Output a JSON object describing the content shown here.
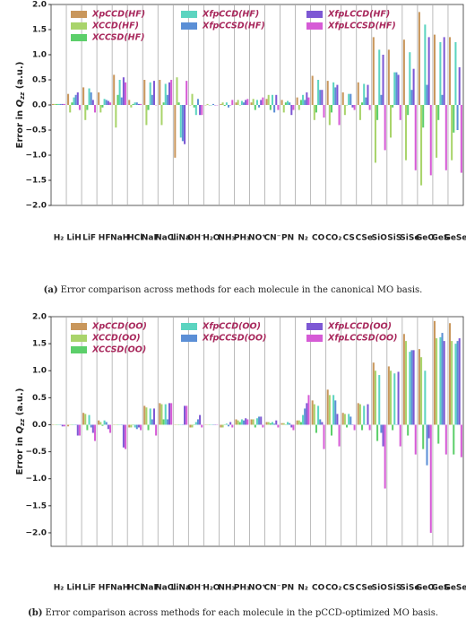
{
  "chart_data": [
    {
      "type": "bar",
      "ylabel_pre": "Error in ",
      "ylabel_q": "Q",
      "ylabel_sub": "zz",
      "ylabel_post": " (a.u.)",
      "caption_label": "(a)",
      "caption": "Error comparison across methods for each molecule in the canonical MO basis.",
      "categories": [
        "H₂",
        "LiH",
        "LiF",
        "HF",
        "NaH",
        "HCl",
        "NaF",
        "NaCl",
        "LiNa",
        "OH⁻",
        "H₂O",
        "NH₃",
        "PH₃",
        "NO⁺",
        "CN⁻",
        "PN",
        "N₂",
        "CO",
        "CO₂",
        "CS",
        "CSe",
        "SiO",
        "SiS",
        "SiSe",
        "GeO",
        "GeS",
        "GeSe"
      ],
      "ylim": [
        -2.0,
        2.0
      ],
      "yticks": [
        {
          "value": 2.0,
          "label": "2.0"
        },
        {
          "value": 1.5,
          "label": "1.5"
        },
        {
          "value": 1.0,
          "label": "1.0"
        },
        {
          "value": 0.5,
          "label": "0.5"
        },
        {
          "value": 0.0,
          "label": "0.0"
        },
        {
          "value": -0.5,
          "label": "−0.5"
        },
        {
          "value": -1.0,
          "label": "−1.0"
        },
        {
          "value": -1.5,
          "label": "−1.5"
        },
        {
          "value": -2.0,
          "label": "−2.0"
        }
      ],
      "series": [
        {
          "name": "XpCCD(HF)",
          "color": "#c9975c",
          "values": [
            0.02,
            0.22,
            0.35,
            0.25,
            0.6,
            0.1,
            0.5,
            0.5,
            -1.05,
            0.0,
            0.0,
            0.02,
            0.05,
            0.05,
            0.12,
            0.1,
            0.15,
            0.58,
            0.48,
            0.25,
            0.45,
            1.35,
            1.1,
            1.3,
            1.85,
            1.4,
            1.35
          ]
        },
        {
          "name": "XCCD(HF)",
          "color": "#a9d46b",
          "values": [
            0.02,
            -0.15,
            -0.3,
            -0.15,
            -0.45,
            -0.05,
            -0.4,
            -0.4,
            0.55,
            0.22,
            0.02,
            0.05,
            0.1,
            0.12,
            0.2,
            -0.15,
            -0.1,
            -0.3,
            -0.4,
            -0.2,
            -0.3,
            -1.15,
            -0.65,
            -1.1,
            -1.6,
            -1.05,
            -1.1
          ]
        },
        {
          "name": "XCCSD(HF)",
          "color": "#5ccf6a",
          "values": [
            0.02,
            0.05,
            -0.1,
            -0.05,
            0.2,
            0.02,
            -0.1,
            0.05,
            0.05,
            -0.05,
            0.0,
            -0.02,
            0.0,
            -0.1,
            -0.1,
            0.05,
            0.1,
            -0.15,
            -0.15,
            0.0,
            0.05,
            -0.3,
            -0.05,
            -0.2,
            -0.45,
            -0.3,
            -0.55
          ]
        },
        {
          "name": "XfpCCD(HF)",
          "color": "#5cd4c0",
          "values": [
            0.02,
            0.15,
            0.33,
            0.12,
            0.5,
            0.05,
            0.45,
            0.42,
            -0.65,
            -0.2,
            0.0,
            0.05,
            0.08,
            0.1,
            0.2,
            0.08,
            0.2,
            0.5,
            0.45,
            0.22,
            0.42,
            1.1,
            0.65,
            1.05,
            1.6,
            1.25,
            1.25
          ]
        },
        {
          "name": "XfpCCSD(HF)",
          "color": "#5b8fd6",
          "values": [
            0.02,
            0.2,
            0.25,
            0.1,
            0.15,
            0.05,
            0.2,
            0.2,
            -0.72,
            0.12,
            0.02,
            -0.05,
            0.05,
            -0.05,
            -0.15,
            0.05,
            0.1,
            0.3,
            0.35,
            0.22,
            0.15,
            0.2,
            0.65,
            0.3,
            0.4,
            0.2,
            -0.5
          ]
        },
        {
          "name": "XfpLCCD(HF)",
          "color": "#7d58d4",
          "values": [
            0.02,
            0.25,
            0.1,
            0.08,
            0.55,
            0.02,
            0.48,
            0.45,
            -0.78,
            -0.2,
            0.0,
            0.0,
            0.1,
            0.1,
            0.2,
            -0.2,
            0.25,
            0.3,
            0.4,
            -0.05,
            0.4,
            1.0,
            0.6,
            0.72,
            1.35,
            1.35,
            0.75
          ]
        },
        {
          "name": "XfpLCCSD(HF)",
          "color": "#d65bd6",
          "values": [
            0.02,
            -0.1,
            -0.15,
            0.05,
            0.45,
            0.02,
            0.0,
            0.5,
            0.48,
            -0.2,
            0.0,
            0.1,
            0.12,
            0.15,
            -0.1,
            -0.1,
            0.15,
            -0.25,
            -0.4,
            -0.1,
            -0.1,
            -0.9,
            -0.3,
            -1.3,
            -1.4,
            -1.3,
            -1.35
          ]
        }
      ]
    },
    {
      "type": "bar",
      "ylabel_pre": "Error in ",
      "ylabel_q": "Q",
      "ylabel_sub": "zz",
      "ylabel_post": " (a.u.)",
      "caption_label": "(b)",
      "caption": "Error comparison across methods for each molecule in the pCCD-optimized MO basis.",
      "categories": [
        "H₂",
        "LiH",
        "LiF",
        "HF",
        "NaH",
        "HCl",
        "NaF",
        "NaCl",
        "LiNa",
        "OH⁻",
        "H₂O",
        "NH₃",
        "PH₃",
        "NO⁺",
        "CN⁻",
        "PN",
        "N₂",
        "CO",
        "CO₂",
        "CS",
        "CSe",
        "SiO",
        "SiS",
        "SiSe",
        "GeO",
        "GeS",
        "GeSe"
      ],
      "ylim": [
        -2.25,
        2.0
      ],
      "yticks": [
        {
          "value": 2.0,
          "label": "2.0"
        },
        {
          "value": 1.5,
          "label": "1.5"
        },
        {
          "value": 1.0,
          "label": "1.0"
        },
        {
          "value": 0.5,
          "label": "0.5"
        },
        {
          "value": 0.0,
          "label": "0.0"
        },
        {
          "value": -0.5,
          "label": "−0.5"
        },
        {
          "value": -1.0,
          "label": "−1.0"
        },
        {
          "value": -1.5,
          "label": "−1.5"
        },
        {
          "value": -2.0,
          "label": "−2.0"
        }
      ],
      "series": [
        {
          "name": "XpCCD(OO)",
          "color": "#c9975c",
          "values": [
            0.0,
            -0.03,
            0.22,
            0.08,
            0.0,
            -0.05,
            0.35,
            0.4,
            0.0,
            -0.05,
            0.0,
            -0.05,
            0.1,
            0.1,
            0.05,
            0.03,
            0.08,
            0.45,
            0.65,
            0.22,
            0.4,
            1.15,
            1.08,
            1.68,
            1.4,
            1.92,
            1.88
          ]
        },
        {
          "name": "XCCD(OO)",
          "color": "#a9d46b",
          "values": [
            0.0,
            0.0,
            0.2,
            0.05,
            0.0,
            -0.05,
            0.32,
            0.38,
            0.0,
            -0.05,
            0.0,
            -0.05,
            0.08,
            0.1,
            0.05,
            0.03,
            0.08,
            0.38,
            0.55,
            0.2,
            0.38,
            1.0,
            1.0,
            1.55,
            1.25,
            1.6,
            1.55
          ]
        },
        {
          "name": "XCCSD(OO)",
          "color": "#5ccf6a",
          "values": [
            0.0,
            0.0,
            -0.1,
            -0.02,
            0.0,
            0.0,
            -0.1,
            0.1,
            0.0,
            0.0,
            0.0,
            0.0,
            0.05,
            -0.05,
            0.03,
            0.0,
            0.05,
            -0.15,
            -0.2,
            -0.05,
            -0.1,
            -0.3,
            -0.1,
            -0.2,
            -0.45,
            -0.35,
            -0.55
          ]
        },
        {
          "name": "XfpCCD(OO)",
          "color": "#5cd4c0",
          "values": [
            0.0,
            0.0,
            0.18,
            0.08,
            0.0,
            -0.05,
            0.3,
            0.38,
            0.0,
            0.05,
            0.0,
            0.02,
            0.1,
            0.12,
            0.05,
            0.05,
            0.18,
            0.35,
            0.55,
            0.2,
            0.35,
            0.92,
            0.95,
            1.35,
            1.0,
            1.62,
            1.5
          ]
        },
        {
          "name": "XfpCCSD(OO)",
          "color": "#5b8fd6",
          "values": [
            0.0,
            0.0,
            -0.05,
            0.05,
            0.0,
            -0.08,
            0.1,
            0.1,
            0.0,
            0.1,
            0.0,
            -0.03,
            0.08,
            0.15,
            0.02,
            0.03,
            0.3,
            0.1,
            0.45,
            0.15,
            0.0,
            -0.15,
            0.0,
            1.38,
            -0.75,
            1.7,
            1.55
          ]
        },
        {
          "name": "XfpLCCD(OO)",
          "color": "#7d58d4",
          "values": [
            -0.03,
            -0.2,
            -0.15,
            -0.08,
            -0.42,
            -0.05,
            0.3,
            0.4,
            0.35,
            0.18,
            0.0,
            0.05,
            0.12,
            0.15,
            0.08,
            -0.05,
            0.4,
            0.05,
            0.2,
            0.0,
            0.38,
            -0.4,
            0.98,
            1.38,
            -0.25,
            1.55,
            1.6
          ]
        },
        {
          "name": "XfpLCCSD(OO)",
          "color": "#d65bd6",
          "values": [
            -0.03,
            -0.2,
            -0.3,
            -0.15,
            -0.45,
            -0.1,
            -0.2,
            0.4,
            0.35,
            -0.05,
            0.0,
            -0.05,
            0.1,
            -0.05,
            -0.05,
            -0.1,
            0.55,
            -0.45,
            -0.4,
            -0.1,
            -0.1,
            -1.18,
            -0.4,
            -0.55,
            -2.0,
            -0.55,
            -0.6
          ]
        }
      ]
    }
  ]
}
